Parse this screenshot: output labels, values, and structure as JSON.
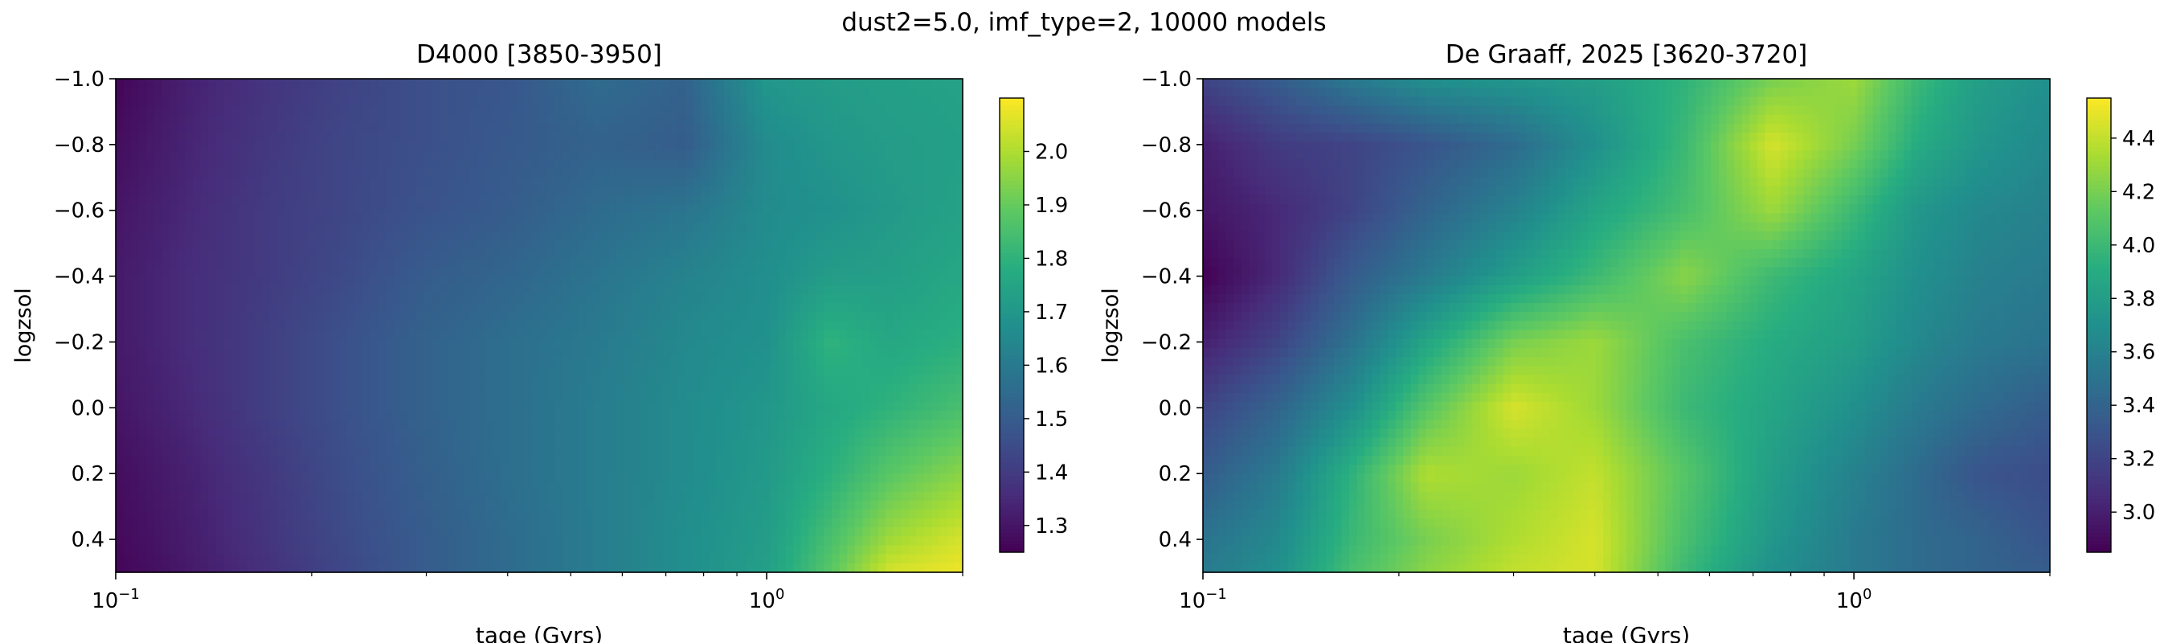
{
  "figure": {
    "suptitle": "dust2=5.0, imf_type=2, 10000 models"
  },
  "chart_data": [
    {
      "type": "heatmap",
      "title": "D4000 [3850-3950]",
      "xlabel": "tage (Gyrs)",
      "ylabel": "logzsol",
      "xscale": "log",
      "xlim": [
        0.1,
        2.0
      ],
      "ylim": [
        -1.0,
        0.5
      ],
      "y_inverted": true,
      "colormap": "viridis",
      "x_ticks": [
        {
          "value": 0.1,
          "base": "10",
          "exp": "−1"
        },
        {
          "value": 1.0,
          "base": "10",
          "exp": "0"
        }
      ],
      "y_ticks": [
        {
          "value": -1.0,
          "label": "−1.0"
        },
        {
          "value": -0.8,
          "label": "−0.8"
        },
        {
          "value": -0.6,
          "label": "−0.6"
        },
        {
          "value": -0.4,
          "label": "−0.4"
        },
        {
          "value": -0.2,
          "label": "−0.2"
        },
        {
          "value": 0.0,
          "label": "0.0"
        },
        {
          "value": 0.2,
          "label": "0.2"
        },
        {
          "value": 0.4,
          "label": "0.4"
        }
      ],
      "colorbar": {
        "range": [
          1.25,
          2.1
        ],
        "ticks": [
          {
            "value": 1.3,
            "label": "1.3"
          },
          {
            "value": 1.4,
            "label": "1.4"
          },
          {
            "value": 1.5,
            "label": "1.5"
          },
          {
            "value": 1.6,
            "label": "1.6"
          },
          {
            "value": 1.7,
            "label": "1.7"
          },
          {
            "value": 1.8,
            "label": "1.8"
          },
          {
            "value": 1.9,
            "label": "1.9"
          },
          {
            "value": 2.0,
            "label": "2.0"
          }
        ]
      },
      "grid_x": [
        0.1,
        0.13,
        0.17,
        0.22,
        0.3,
        0.4,
        0.55,
        0.75,
        1.0,
        1.25,
        1.55,
        2.0
      ],
      "grid_y": [
        -1.0,
        -0.8,
        -0.6,
        -0.4,
        -0.2,
        0.0,
        0.2,
        0.4,
        0.5
      ],
      "values": [
        [
          1.26,
          1.33,
          1.38,
          1.42,
          1.46,
          1.48,
          1.55,
          1.52,
          1.7,
          1.72,
          1.73,
          1.74
        ],
        [
          1.28,
          1.34,
          1.39,
          1.43,
          1.46,
          1.49,
          1.52,
          1.5,
          1.66,
          1.7,
          1.72,
          1.73
        ],
        [
          1.3,
          1.35,
          1.4,
          1.43,
          1.47,
          1.5,
          1.55,
          1.58,
          1.66,
          1.68,
          1.71,
          1.74
        ],
        [
          1.31,
          1.36,
          1.4,
          1.44,
          1.5,
          1.53,
          1.58,
          1.63,
          1.67,
          1.72,
          1.73,
          1.76
        ],
        [
          1.31,
          1.36,
          1.41,
          1.46,
          1.52,
          1.56,
          1.6,
          1.65,
          1.68,
          1.8,
          1.76,
          1.79
        ],
        [
          1.3,
          1.35,
          1.41,
          1.46,
          1.52,
          1.56,
          1.61,
          1.66,
          1.7,
          1.76,
          1.8,
          1.85
        ],
        [
          1.28,
          1.33,
          1.39,
          1.45,
          1.51,
          1.56,
          1.61,
          1.66,
          1.71,
          1.79,
          1.88,
          1.95
        ],
        [
          1.27,
          1.32,
          1.38,
          1.44,
          1.5,
          1.55,
          1.61,
          1.67,
          1.72,
          1.85,
          1.98,
          2.05
        ],
        [
          1.26,
          1.31,
          1.37,
          1.43,
          1.5,
          1.55,
          1.61,
          1.67,
          1.73,
          1.88,
          2.05,
          2.08
        ]
      ]
    },
    {
      "type": "heatmap",
      "title": "De Graaff, 2025 [3620-3720]",
      "xlabel": "tage (Gyrs)",
      "ylabel": "logzsol",
      "xscale": "log",
      "xlim": [
        0.1,
        2.0
      ],
      "ylim": [
        -1.0,
        0.5
      ],
      "y_inverted": true,
      "colormap": "viridis",
      "x_ticks": [
        {
          "value": 0.1,
          "base": "10",
          "exp": "−1"
        },
        {
          "value": 1.0,
          "base": "10",
          "exp": "0"
        }
      ],
      "y_ticks": [
        {
          "value": -1.0,
          "label": "−1.0"
        },
        {
          "value": -0.8,
          "label": "−0.8"
        },
        {
          "value": -0.6,
          "label": "−0.6"
        },
        {
          "value": -0.4,
          "label": "−0.4"
        },
        {
          "value": -0.2,
          "label": "−0.2"
        },
        {
          "value": 0.0,
          "label": "0.0"
        },
        {
          "value": 0.2,
          "label": "0.2"
        },
        {
          "value": 0.4,
          "label": "0.4"
        }
      ],
      "colorbar": {
        "range": [
          2.85,
          4.55
        ],
        "ticks": [
          {
            "value": 3.0,
            "label": "3.0"
          },
          {
            "value": 3.2,
            "label": "3.2"
          },
          {
            "value": 3.4,
            "label": "3.4"
          },
          {
            "value": 3.6,
            "label": "3.6"
          },
          {
            "value": 3.8,
            "label": "3.8"
          },
          {
            "value": 4.0,
            "label": "4.0"
          },
          {
            "value": 4.2,
            "label": "4.2"
          },
          {
            "value": 4.4,
            "label": "4.4"
          }
        ]
      },
      "grid_x": [
        0.1,
        0.13,
        0.17,
        0.22,
        0.3,
        0.4,
        0.55,
        0.75,
        1.0,
        1.25,
        1.55,
        2.0
      ],
      "grid_y": [
        -1.0,
        -0.8,
        -0.6,
        -0.4,
        -0.2,
        0.0,
        0.2,
        0.4,
        0.5
      ],
      "values": [
        [
          3.2,
          3.35,
          3.55,
          3.7,
          3.75,
          3.8,
          3.95,
          4.2,
          4.3,
          4.0,
          3.8,
          3.7
        ],
        [
          3.0,
          3.15,
          3.2,
          3.3,
          3.45,
          3.7,
          4.0,
          4.45,
          4.2,
          3.9,
          3.75,
          3.65
        ],
        [
          2.95,
          3.05,
          3.2,
          3.4,
          3.6,
          3.85,
          4.05,
          4.3,
          4.0,
          3.75,
          3.65,
          3.6
        ],
        [
          2.85,
          3.05,
          3.35,
          3.55,
          3.8,
          4.0,
          4.25,
          4.0,
          3.85,
          3.7,
          3.6,
          3.55
        ],
        [
          3.0,
          3.2,
          3.5,
          3.85,
          4.2,
          4.3,
          4.05,
          3.9,
          3.8,
          3.65,
          3.55,
          3.5
        ],
        [
          3.2,
          3.4,
          3.7,
          4.1,
          4.45,
          4.3,
          4.0,
          3.85,
          3.7,
          3.55,
          3.45,
          3.35
        ],
        [
          3.35,
          3.55,
          3.95,
          4.35,
          4.3,
          4.4,
          4.1,
          3.8,
          3.6,
          3.45,
          3.3,
          3.25
        ],
        [
          3.5,
          3.65,
          4.0,
          4.2,
          4.35,
          4.45,
          4.05,
          3.75,
          3.55,
          3.45,
          3.4,
          3.3
        ],
        [
          3.55,
          3.7,
          4.05,
          4.25,
          4.4,
          4.45,
          4.0,
          3.7,
          3.55,
          3.45,
          3.4,
          3.35
        ]
      ]
    }
  ]
}
